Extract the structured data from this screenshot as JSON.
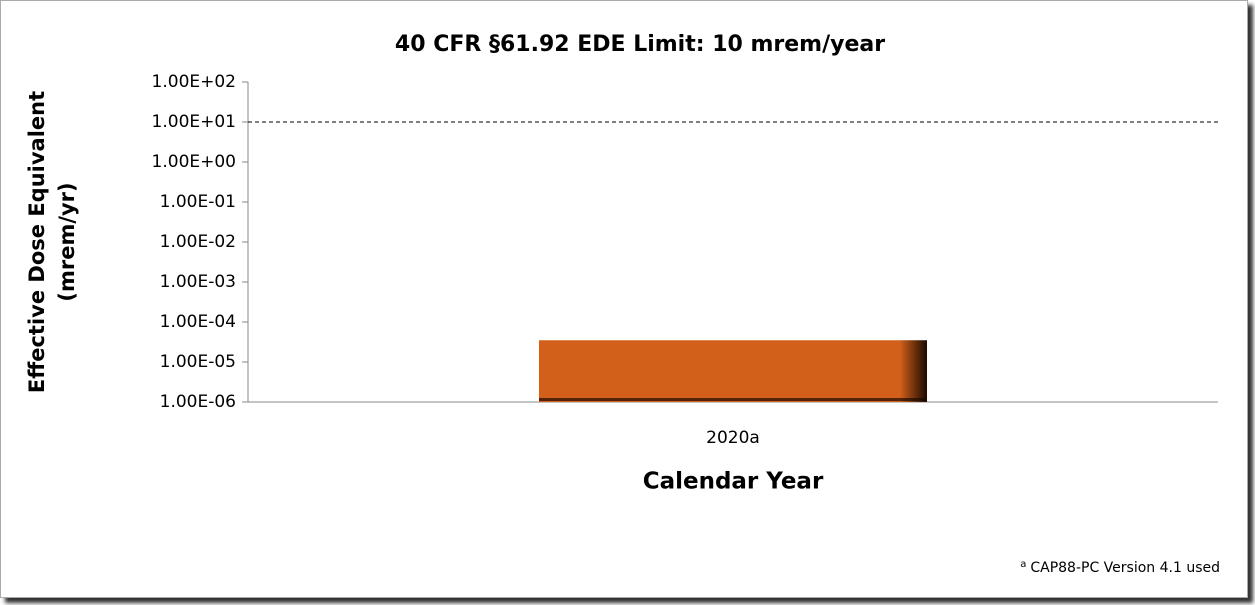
{
  "chart_data": {
    "type": "bar",
    "title": "40 CFR §61.92 EDE Limit: 10 mrem/year",
    "categories": [
      "2020a"
    ],
    "values": [
      3.5e-05
    ],
    "color": "#d2601a",
    "log_scale": true,
    "ylim": [
      1e-06,
      100
    ],
    "yticks": [
      {
        "value": 1e-06,
        "label": "1.00E-06"
      },
      {
        "value": 1e-05,
        "label": "1.00E-05"
      },
      {
        "value": 0.0001,
        "label": "1.00E-04"
      },
      {
        "value": 0.001,
        "label": "1.00E-03"
      },
      {
        "value": 0.01,
        "label": "1.00E-02"
      },
      {
        "value": 0.1,
        "label": "1.00E-01"
      },
      {
        "value": 1,
        "label": "1.00E+00"
      },
      {
        "value": 10,
        "label": "1.00E+01"
      },
      {
        "value": 100,
        "label": "1.00E+02"
      }
    ],
    "reference_line": 10,
    "grid": false,
    "ylabel": [
      "Effective Dose Equivalent",
      "(mrem/yr)"
    ],
    "xlabel": "Calendar Year",
    "footnote": {
      "marker": "a",
      "text": "CAP88-PC Version 4.1 used"
    }
  }
}
